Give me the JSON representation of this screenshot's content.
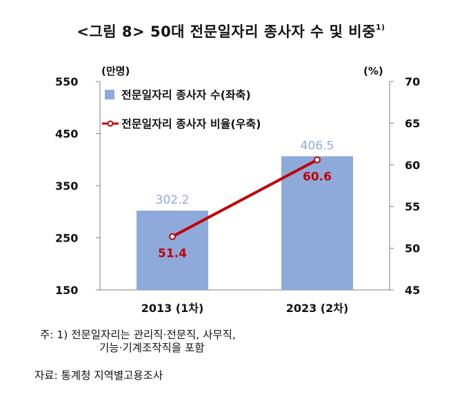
{
  "title": "<그림 8> 50대 전문일자리 종사자 수 및 비중",
  "title_note": "1)",
  "chart_data": {
    "type": "bar",
    "categories": [
      "2013 (1차)",
      "2023 (2차)"
    ],
    "series": [
      {
        "name": "전문일자리 종사자 수(좌축)",
        "type": "bar",
        "axis": "left",
        "values": [
          302.2,
          406.5
        ],
        "labels": [
          "302.2",
          "406.5"
        ],
        "color": "#8eaadb",
        "label_color": "#8eaadb"
      },
      {
        "name": "전문일자리 종사자 비율(우축)",
        "type": "line",
        "axis": "right",
        "values": [
          51.4,
          60.6
        ],
        "labels": [
          "51.4",
          "60.6"
        ],
        "color": "#c00000",
        "label_color": "#c00000"
      }
    ],
    "left_axis": {
      "unit": "(만명)",
      "ticks": [
        "550",
        "450",
        "350",
        "250",
        "150"
      ],
      "ylim": [
        150,
        550
      ]
    },
    "right_axis": {
      "unit": "(%)",
      "ticks": [
        "70",
        "65",
        "60",
        "55",
        "50",
        "45"
      ],
      "ylim": [
        45,
        70
      ]
    },
    "grid": false,
    "legend_position": "top-left"
  },
  "notes": {
    "line1": "주: 1) 전문일자리는 관리직·전문직, 사무직,",
    "line2": "기능·기계조작직을 포함",
    "source": "자료: 통계청 지역별고용조사"
  }
}
